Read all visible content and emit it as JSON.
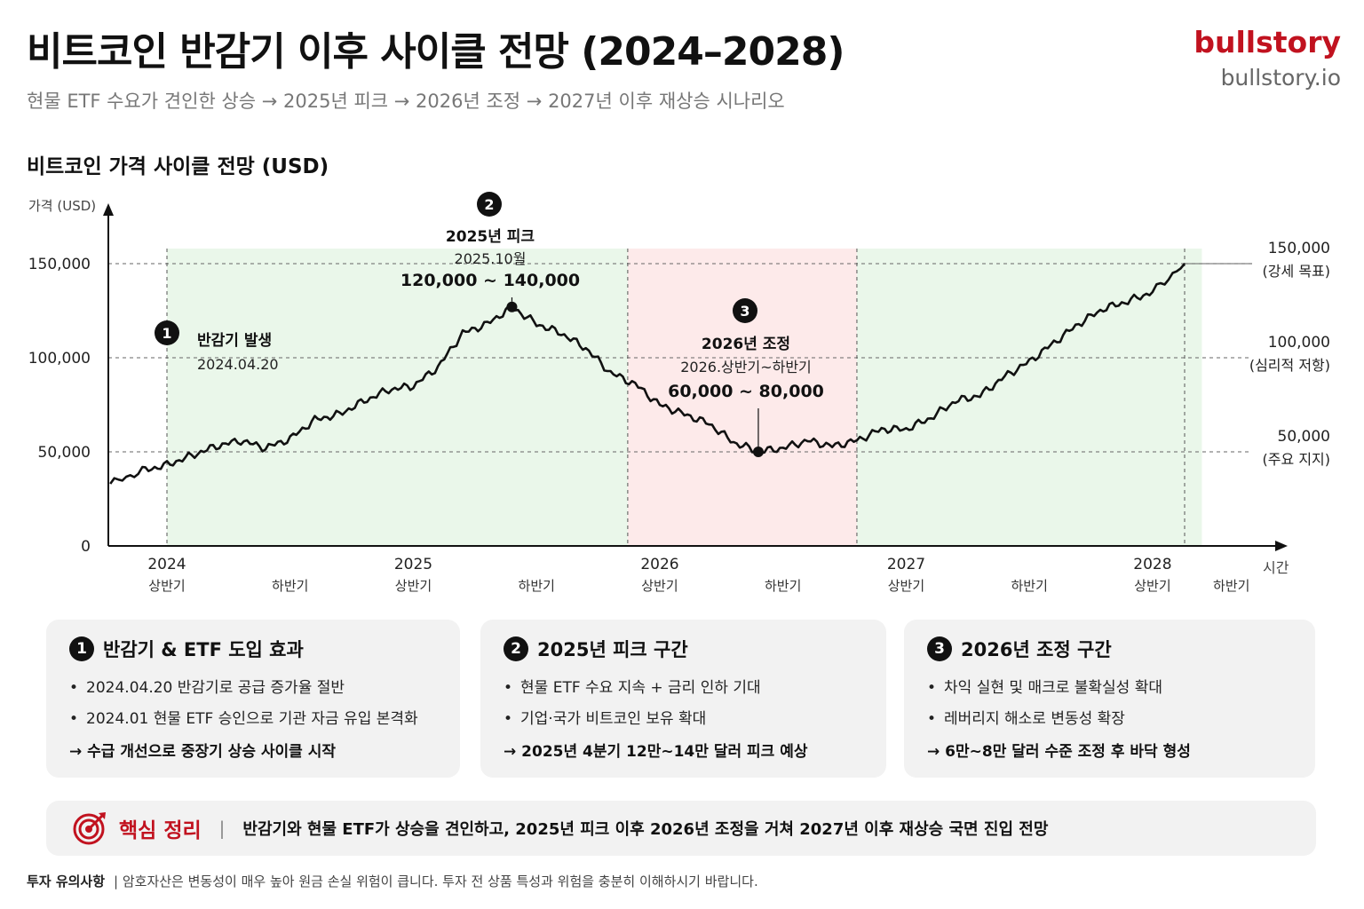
{
  "header": {
    "title": "비트코인 반감기 이후 사이클 전망 (2024–2028)",
    "subtitle": "현물 ETF 수요가 견인한 상승 → 2025년 피크 → 2026년 조정 → 2027년 이후 재상승 시나리오"
  },
  "brand": {
    "name": "bullstory",
    "url": "bullstory.io"
  },
  "chart_title": "비트코인 가격 사이클 전망 (USD)",
  "colors": {
    "brand": "#c1121f",
    "green_zone": "#eaf7ea",
    "red_zone": "#fdeaea",
    "line": "#111111"
  },
  "chart_data": {
    "type": "line",
    "ylabel": "가격 (USD)",
    "xlabel": "시간",
    "ylim": [
      0,
      160000
    ],
    "yticks": [
      {
        "value": 0,
        "label": "0"
      },
      {
        "value": 50000,
        "label": "50,000"
      },
      {
        "value": 100000,
        "label": "100,000"
      },
      {
        "value": 150000,
        "label": "150,000"
      }
    ],
    "xlim": [
      2023.77,
      2028.68
    ],
    "xticks": [
      {
        "x": 2024.0,
        "year": "2024",
        "half": "상반기"
      },
      {
        "x": 2024.5,
        "half": "하반기"
      },
      {
        "x": 2025.0,
        "year": "2025",
        "half": "상반기"
      },
      {
        "x": 2025.5,
        "half": "하반기"
      },
      {
        "x": 2026.0,
        "year": "2026",
        "half": "상반기"
      },
      {
        "x": 2026.5,
        "half": "하반기"
      },
      {
        "x": 2027.0,
        "year": "2027",
        "half": "상반기"
      },
      {
        "x": 2027.5,
        "half": "하반기"
      },
      {
        "x": 2028.0,
        "year": "2028",
        "half": "상반기"
      },
      {
        "x": 2028.32,
        "half": "하반기"
      }
    ],
    "series": [
      {
        "x": [
          2023.77,
          2023.9,
          2024.0,
          2024.1,
          2024.2,
          2024.3,
          2024.4,
          2024.5,
          2024.6,
          2024.7,
          2024.8,
          2024.9,
          2025.0,
          2025.1,
          2025.2,
          2025.3,
          2025.4,
          2025.5,
          2025.6,
          2025.7,
          2025.8,
          2025.9,
          2026.0,
          2026.1,
          2026.2,
          2026.3,
          2026.4,
          2026.5,
          2026.6,
          2026.7,
          2026.8,
          2026.9,
          2027.0,
          2027.1,
          2027.2,
          2027.3,
          2027.4,
          2027.5,
          2027.6,
          2027.7,
          2027.8,
          2027.9,
          2028.0,
          2028.13
        ],
        "y": [
          33000,
          40000,
          43000,
          48000,
          53000,
          56000,
          52000,
          57000,
          67000,
          70000,
          77000,
          83000,
          85000,
          95000,
          113000,
          118000,
          127000,
          118000,
          113000,
          105000,
          92000,
          86000,
          75000,
          70000,
          65000,
          55000,
          50000,
          52000,
          56000,
          53000,
          56000,
          62000,
          62000,
          68000,
          77000,
          80000,
          90000,
          98000,
          108000,
          118000,
          126000,
          130000,
          135000,
          150000
        ]
      }
    ],
    "zones": [
      {
        "from": 2024.0,
        "to": 2025.87,
        "kind": "green"
      },
      {
        "from": 2025.87,
        "to": 2026.8,
        "kind": "red"
      },
      {
        "from": 2026.8,
        "to": 2028.2,
        "kind": "green"
      }
    ],
    "markers": [
      {
        "x": 2024.0
      },
      {
        "x": 2025.87
      },
      {
        "x": 2026.8
      },
      {
        "x": 2028.13
      }
    ],
    "right_labels": [
      {
        "value": 150000,
        "label": "150,000",
        "note": "(강세 목표)"
      },
      {
        "value": 100000,
        "label": "100,000",
        "note": "(심리적 저항)"
      },
      {
        "value": 50000,
        "label": "50,000",
        "note": "(주요 지지)"
      }
    ],
    "annotations": [
      {
        "id": "1",
        "title": "반감기 발생",
        "date": "2024.04.20",
        "range": "",
        "x": 2024.0
      },
      {
        "id": "2",
        "title": "2025년 피크",
        "date": "2025.10월",
        "range": "120,000 ~ 140,000",
        "x": 2025.4,
        "y": 127000
      },
      {
        "id": "3",
        "title": "2026년 조정",
        "date": "2026.상반기~하반기",
        "range": "60,000 ~ 80,000",
        "x": 2026.4,
        "y": 50000
      }
    ]
  },
  "cards": [
    {
      "num": "1",
      "title": "반감기 & ETF 도입 효과",
      "bullets": [
        "2024.04.20 반감기로 공급 증가율 절반",
        "2024.01 현물 ETF 승인으로 기관 자금 유입 본격화"
      ],
      "conclusion": "→ 수급 개선으로 중장기 상승 사이클 시작"
    },
    {
      "num": "2",
      "title": "2025년 피크 구간",
      "bullets": [
        "현물 ETF 수요 지속 + 금리 인하 기대",
        "기업·국가 비트코인 보유 확대"
      ],
      "conclusion": "→ 2025년 4분기 12만~14만 달러 피크 예상"
    },
    {
      "num": "3",
      "title": "2026년 조정 구간",
      "bullets": [
        "차익 실현 및 매크로 불확실성 확대",
        "레버리지 해소로 변동성 확장"
      ],
      "conclusion": "→ 6만~8만 달러 수준 조정 후 바닥 형성"
    }
  ],
  "summary": {
    "label": "핵심 정리",
    "text": "반감기와 현물 ETF가 상승을 견인하고, 2025년 피크 이후 2026년 조정을 거쳐 2027년 이후 재상승 국면 진입 전망"
  },
  "footer": {
    "label": "투자 유의사항",
    "text": "| 암호자산은 변동성이 매우 높아 원금 손실 위험이 큽니다. 투자 전 상품 특성과 위험을 충분히 이해하시기 바랍니다."
  }
}
